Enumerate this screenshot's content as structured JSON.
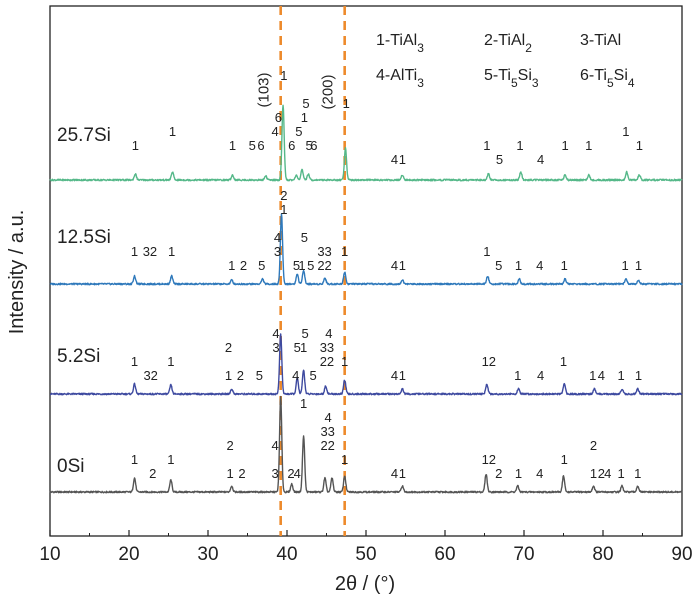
{
  "chart_data": {
    "type": "line",
    "xlabel": "2θ / (°)",
    "ylabel": "Intensity / a.u.",
    "xlim": [
      10,
      90
    ],
    "x_ticks": [
      "10",
      "20",
      "30",
      "40",
      "50",
      "60",
      "70",
      "80",
      "90"
    ],
    "grid": false,
    "reference_lines": [
      {
        "x": 39.2,
        "label": "(103)",
        "color": "#ed8a2b"
      },
      {
        "x": 47.3,
        "label": "(200)",
        "color": "#ed8a2b"
      }
    ],
    "legend": [
      "1-TiAl3",
      "2-TiAl2",
      "3-TiAl",
      "4-AlTi3",
      "5-Ti5Si3",
      "6-Ti5Si4"
    ],
    "series": [
      {
        "name": "0Si",
        "color": "#555555",
        "baseline": 0,
        "peaks": [
          {
            "x": 20.7,
            "h": 14
          },
          {
            "x": 25.3,
            "h": 12
          },
          {
            "x": 33.0,
            "h": 6
          },
          {
            "x": 39.2,
            "h": 95
          },
          {
            "x": 40.6,
            "h": 8
          },
          {
            "x": 42.1,
            "h": 56
          },
          {
            "x": 44.8,
            "h": 14
          },
          {
            "x": 45.7,
            "h": 14
          },
          {
            "x": 47.3,
            "h": 16
          },
          {
            "x": 54.6,
            "h": 6
          },
          {
            "x": 65.2,
            "h": 18
          },
          {
            "x": 69.2,
            "h": 6
          },
          {
            "x": 75.0,
            "h": 16
          },
          {
            "x": 78.8,
            "h": 6
          },
          {
            "x": 82.4,
            "h": 6
          },
          {
            "x": 84.4,
            "h": 6
          }
        ],
        "peak_labels": [
          {
            "x": 20.7,
            "text": "1",
            "level": 1
          },
          {
            "x": 23.0,
            "text": "2",
            "level": 0
          },
          {
            "x": 25.3,
            "text": "1",
            "level": 1
          },
          {
            "x": 32.8,
            "text": "2",
            "level": 2
          },
          {
            "x": 32.8,
            "text": "1",
            "level": 0
          },
          {
            "x": 34.3,
            "text": "2",
            "level": 0
          },
          {
            "x": 38.5,
            "text": "4",
            "level": 2
          },
          {
            "x": 38.5,
            "text": "3",
            "level": 0
          },
          {
            "x": 40.5,
            "text": "2",
            "level": 0
          },
          {
            "x": 41.3,
            "text": "4",
            "level": 0
          },
          {
            "x": 42.1,
            "text": "1",
            "level": 5
          },
          {
            "x": 45.2,
            "text": "4",
            "level": 4
          },
          {
            "x": 44.7,
            "text": "3",
            "level": 3
          },
          {
            "x": 45.6,
            "text": "3",
            "level": 3
          },
          {
            "x": 44.7,
            "text": "2",
            "level": 2
          },
          {
            "x": 45.6,
            "text": "2",
            "level": 2
          },
          {
            "x": 47.3,
            "text": "1",
            "level": 1
          },
          {
            "x": 53.6,
            "text": "4",
            "level": 0
          },
          {
            "x": 54.6,
            "text": "1",
            "level": 0
          },
          {
            "x": 65.1,
            "text": "1",
            "level": 1
          },
          {
            "x": 66.0,
            "text": "2",
            "level": 1
          },
          {
            "x": 66.8,
            "text": "2",
            "level": 0
          },
          {
            "x": 69.3,
            "text": "1",
            "level": 0
          },
          {
            "x": 72.0,
            "text": "4",
            "level": 0
          },
          {
            "x": 75.1,
            "text": "1",
            "level": 1
          },
          {
            "x": 78.8,
            "text": "2",
            "level": 2
          },
          {
            "x": 78.8,
            "text": "1",
            "level": 0
          },
          {
            "x": 79.8,
            "text": "2",
            "level": 0
          },
          {
            "x": 80.6,
            "text": "4",
            "level": 0
          },
          {
            "x": 82.3,
            "text": "1",
            "level": 0
          },
          {
            "x": 84.4,
            "text": "1",
            "level": 0
          }
        ]
      },
      {
        "name": "5.2Si",
        "color": "#3e4aa0",
        "baseline": 1,
        "peaks": [
          {
            "x": 20.7,
            "h": 10
          },
          {
            "x": 25.3,
            "h": 9
          },
          {
            "x": 33.0,
            "h": 5
          },
          {
            "x": 39.2,
            "h": 60
          },
          {
            "x": 41.3,
            "h": 16
          },
          {
            "x": 42.1,
            "h": 24
          },
          {
            "x": 44.9,
            "h": 8
          },
          {
            "x": 47.3,
            "h": 14
          },
          {
            "x": 54.6,
            "h": 5
          },
          {
            "x": 65.3,
            "h": 10
          },
          {
            "x": 69.3,
            "h": 5
          },
          {
            "x": 75.1,
            "h": 10
          },
          {
            "x": 78.9,
            "h": 5
          },
          {
            "x": 82.4,
            "h": 5
          },
          {
            "x": 84.4,
            "h": 5
          }
        ],
        "peak_labels": [
          {
            "x": 20.7,
            "text": "1",
            "level": 1
          },
          {
            "x": 22.3,
            "text": "3",
            "level": 0
          },
          {
            "x": 23.2,
            "text": "2",
            "level": 0
          },
          {
            "x": 25.3,
            "text": "1",
            "level": 1
          },
          {
            "x": 32.6,
            "text": "2",
            "level": 2
          },
          {
            "x": 32.6,
            "text": "1",
            "level": 0
          },
          {
            "x": 34.1,
            "text": "2",
            "level": 0
          },
          {
            "x": 36.5,
            "text": "5",
            "level": 0
          },
          {
            "x": 38.6,
            "text": "4",
            "level": 3
          },
          {
            "x": 38.6,
            "text": "3",
            "level": 2
          },
          {
            "x": 41.1,
            "text": "4",
            "level": 0
          },
          {
            "x": 41.3,
            "text": "5",
            "level": 2
          },
          {
            "x": 42.1,
            "text": "1",
            "level": 2
          },
          {
            "x": 42.3,
            "text": "5",
            "level": 3
          },
          {
            "x": 43.3,
            "text": "5",
            "level": 0
          },
          {
            "x": 44.6,
            "text": "3",
            "level": 2
          },
          {
            "x": 45.5,
            "text": "3",
            "level": 2
          },
          {
            "x": 45.3,
            "text": "4",
            "level": 3
          },
          {
            "x": 44.6,
            "text": "2",
            "level": 1
          },
          {
            "x": 45.5,
            "text": "2",
            "level": 1
          },
          {
            "x": 47.3,
            "text": "1",
            "level": 1
          },
          {
            "x": 53.6,
            "text": "4",
            "level": 0
          },
          {
            "x": 54.6,
            "text": "1",
            "level": 0
          },
          {
            "x": 65.1,
            "text": "1",
            "level": 1
          },
          {
            "x": 66.0,
            "text": "2",
            "level": 1
          },
          {
            "x": 69.2,
            "text": "1",
            "level": 0
          },
          {
            "x": 72.1,
            "text": "4",
            "level": 0
          },
          {
            "x": 75.0,
            "text": "1",
            "level": 1
          },
          {
            "x": 78.7,
            "text": "1",
            "level": 0
          },
          {
            "x": 79.8,
            "text": "4",
            "level": 0
          },
          {
            "x": 82.3,
            "text": "1",
            "level": 0
          },
          {
            "x": 84.5,
            "text": "1",
            "level": 0
          }
        ]
      },
      {
        "name": "12.5Si",
        "color": "#2f79bb",
        "baseline": 2,
        "peaks": [
          {
            "x": 20.7,
            "h": 8
          },
          {
            "x": 25.4,
            "h": 8
          },
          {
            "x": 33.0,
            "h": 4
          },
          {
            "x": 36.9,
            "h": 5
          },
          {
            "x": 39.3,
            "h": 70
          },
          {
            "x": 41.3,
            "h": 10
          },
          {
            "x": 42.1,
            "h": 14
          },
          {
            "x": 44.8,
            "h": 6
          },
          {
            "x": 47.3,
            "h": 12
          },
          {
            "x": 54.6,
            "h": 4
          },
          {
            "x": 65.4,
            "h": 8
          },
          {
            "x": 69.4,
            "h": 5
          },
          {
            "x": 75.2,
            "h": 5
          },
          {
            "x": 82.9,
            "h": 5
          },
          {
            "x": 84.5,
            "h": 4
          }
        ],
        "peak_labels": [
          {
            "x": 20.7,
            "text": "1",
            "level": 1
          },
          {
            "x": 22.2,
            "text": "3",
            "level": 1
          },
          {
            "x": 23.1,
            "text": "2",
            "level": 1
          },
          {
            "x": 25.4,
            "text": "1",
            "level": 1
          },
          {
            "x": 33.0,
            "text": "1",
            "level": 0
          },
          {
            "x": 34.5,
            "text": "2",
            "level": 0
          },
          {
            "x": 36.8,
            "text": "5",
            "level": 0
          },
          {
            "x": 38.8,
            "text": "4",
            "level": 2
          },
          {
            "x": 38.8,
            "text": "3",
            "level": 1
          },
          {
            "x": 39.6,
            "text": "1",
            "level": 4
          },
          {
            "x": 39.6,
            "text": "2",
            "level": 5
          },
          {
            "x": 41.2,
            "text": "5",
            "level": 0
          },
          {
            "x": 41.9,
            "text": "1",
            "level": 0
          },
          {
            "x": 42.2,
            "text": "5",
            "level": 2
          },
          {
            "x": 43.0,
            "text": "5",
            "level": 0
          },
          {
            "x": 44.3,
            "text": "3",
            "level": 1
          },
          {
            "x": 45.2,
            "text": "3",
            "level": 1
          },
          {
            "x": 44.3,
            "text": "2",
            "level": 0
          },
          {
            "x": 45.2,
            "text": "2",
            "level": 0
          },
          {
            "x": 47.3,
            "text": "1",
            "level": 1
          },
          {
            "x": 53.6,
            "text": "4",
            "level": 0
          },
          {
            "x": 54.6,
            "text": "1",
            "level": 0
          },
          {
            "x": 65.3,
            "text": "1",
            "level": 1
          },
          {
            "x": 66.8,
            "text": "5",
            "level": 0
          },
          {
            "x": 69.3,
            "text": "1",
            "level": 0
          },
          {
            "x": 72.0,
            "text": "4",
            "level": 0
          },
          {
            "x": 75.1,
            "text": "1",
            "level": 0
          },
          {
            "x": 82.8,
            "text": "1",
            "level": 0
          },
          {
            "x": 84.5,
            "text": "1",
            "level": 0
          }
        ]
      },
      {
        "name": "25.7Si",
        "color": "#55b889",
        "baseline": 3,
        "peaks": [
          {
            "x": 20.8,
            "h": 6
          },
          {
            "x": 25.5,
            "h": 8
          },
          {
            "x": 33.1,
            "h": 5
          },
          {
            "x": 37.3,
            "h": 4
          },
          {
            "x": 39.5,
            "h": 75
          },
          {
            "x": 41.2,
            "h": 5
          },
          {
            "x": 41.9,
            "h": 10
          },
          {
            "x": 42.7,
            "h": 6
          },
          {
            "x": 47.4,
            "h": 32
          },
          {
            "x": 54.6,
            "h": 5
          },
          {
            "x": 65.5,
            "h": 6
          },
          {
            "x": 69.6,
            "h": 8
          },
          {
            "x": 75.2,
            "h": 5
          },
          {
            "x": 78.2,
            "h": 5
          },
          {
            "x": 83.0,
            "h": 8
          },
          {
            "x": 84.6,
            "h": 5
          }
        ],
        "peak_labels": [
          {
            "x": 20.8,
            "text": "1",
            "level": 1
          },
          {
            "x": 25.5,
            "text": "1",
            "level": 2
          },
          {
            "x": 33.1,
            "text": "1",
            "level": 1
          },
          {
            "x": 35.6,
            "text": "5",
            "level": 1
          },
          {
            "x": 36.7,
            "text": "6",
            "level": 1
          },
          {
            "x": 38.5,
            "text": "4",
            "level": 2
          },
          {
            "x": 38.9,
            "text": "6",
            "level": 3
          },
          {
            "x": 39.6,
            "text": "1",
            "level": 6
          },
          {
            "x": 40.6,
            "text": "6",
            "level": 1
          },
          {
            "x": 41.5,
            "text": "5",
            "level": 2
          },
          {
            "x": 42.2,
            "text": "1",
            "level": 3
          },
          {
            "x": 42.4,
            "text": "5",
            "level": 4
          },
          {
            "x": 42.8,
            "text": "5",
            "level": 1
          },
          {
            "x": 43.4,
            "text": "6",
            "level": 1
          },
          {
            "x": 47.5,
            "text": "1",
            "level": 4
          },
          {
            "x": 53.6,
            "text": "4",
            "level": 0
          },
          {
            "x": 54.6,
            "text": "1",
            "level": 0
          },
          {
            "x": 65.3,
            "text": "1",
            "level": 1
          },
          {
            "x": 66.9,
            "text": "5",
            "level": 0
          },
          {
            "x": 69.5,
            "text": "1",
            "level": 1
          },
          {
            "x": 72.1,
            "text": "4",
            "level": 0
          },
          {
            "x": 75.2,
            "text": "1",
            "level": 1
          },
          {
            "x": 78.2,
            "text": "1",
            "level": 1
          },
          {
            "x": 82.9,
            "text": "1",
            "level": 2
          },
          {
            "x": 84.6,
            "text": "1",
            "level": 1
          }
        ]
      }
    ]
  }
}
